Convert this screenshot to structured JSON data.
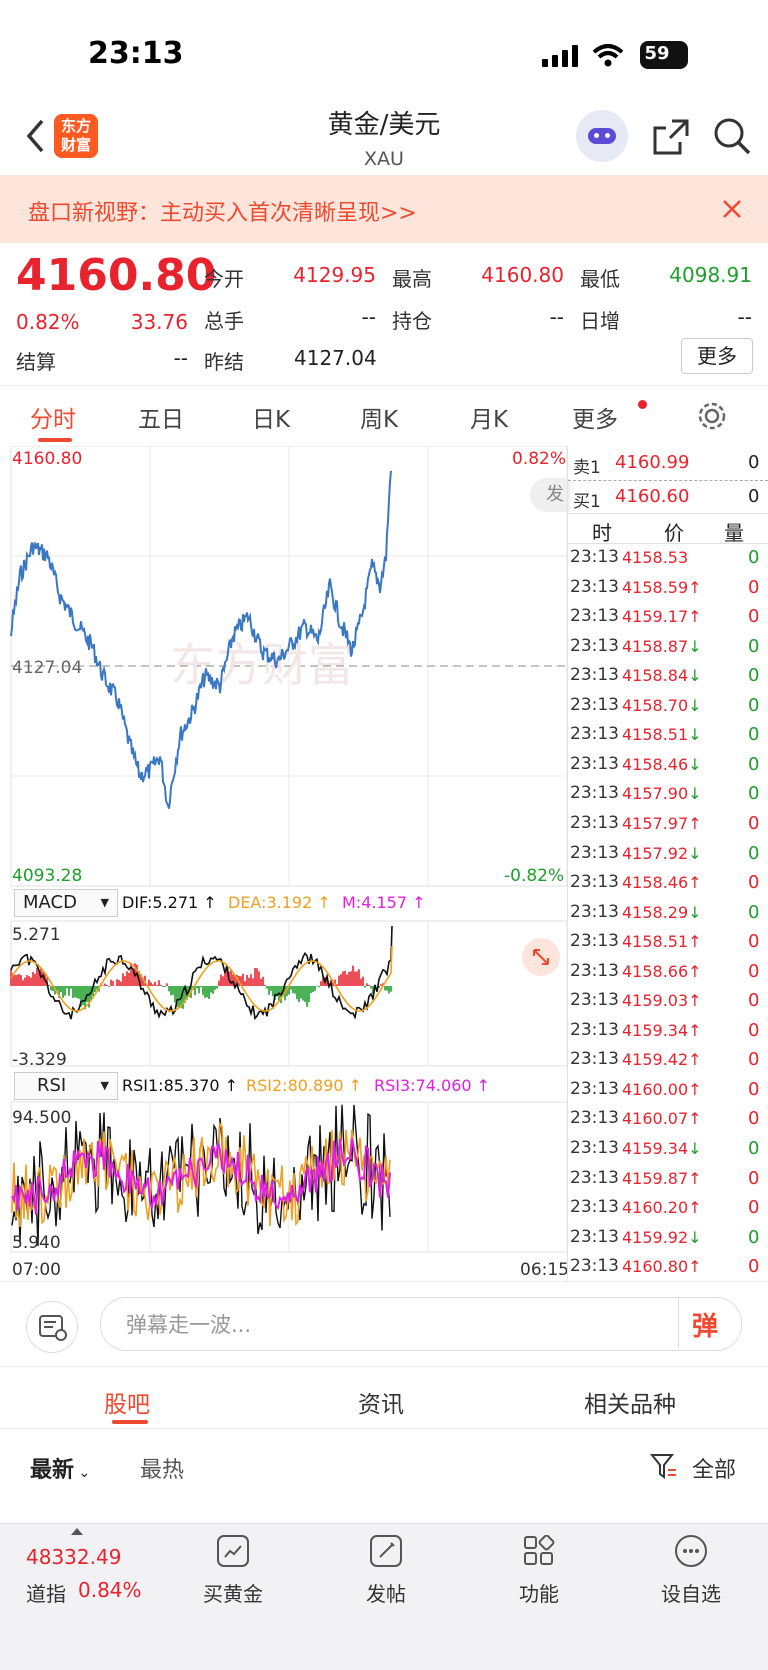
{
  "status_bar": {
    "time": "23:13",
    "battery": "59"
  },
  "nav": {
    "title": "黄金/美元",
    "subtitle": "XAU",
    "logo_text": "东方财富"
  },
  "banner": {
    "text": "盘口新视野：主动买入首次清晰呈现>>"
  },
  "quote": {
    "price": "4160.80",
    "change_pct": "0.82%",
    "change": "33.76",
    "open_label": "今开",
    "open": "4129.95",
    "high_label": "最高",
    "high": "4160.80",
    "low_label": "最低",
    "low": "4098.91",
    "volume_label": "总手",
    "volume": "--",
    "position_label": "持仓",
    "position": "--",
    "daily_inc_label": "日增",
    "daily_inc": "--",
    "settle_label": "结算",
    "settle": "--",
    "prev_settle_label": "昨结",
    "prev_settle": "4127.04",
    "more_label": "更多"
  },
  "tabs": [
    "分时",
    "五日",
    "日K",
    "周K",
    "月K",
    "更多"
  ],
  "chart": {
    "y_top": "4160.80",
    "y_mid": "4127.04",
    "y_bottom": "4093.28",
    "pct_top": "0.82%",
    "pct_bottom": "-0.82%",
    "send_label": "发",
    "macd_selector": "MACD",
    "dif": "DIF:5.271 ↑",
    "dea": "DEA:3.192 ↑",
    "m": "M:4.157 ↑",
    "macd_top": "5.271",
    "macd_bottom": "-3.329",
    "rsi_selector": "RSI",
    "rsi1": "RSI1:85.370 ↑",
    "rsi2": "RSI2:80.890 ↑",
    "rsi3": "RSI3:74.060 ↑",
    "rsi_top": "94.500",
    "rsi_bottom": "5.940",
    "time_start": "07:00",
    "time_end": "06:15",
    "watermark": "东方财富"
  },
  "orderbook": {
    "sell_label": "卖1",
    "sell_price": "4160.99",
    "sell_vol": "0",
    "buy_label": "买1",
    "buy_price": "4160.60",
    "buy_vol": "0",
    "head_time": "时",
    "head_price": "价",
    "head_vol": "量"
  },
  "ticks": [
    {
      "t": "23:13",
      "p": "4158.53",
      "a": "",
      "d": "0",
      "c": "red",
      "vc": "green"
    },
    {
      "t": "23:13",
      "p": "4158.59",
      "a": "↑",
      "d": "0",
      "c": "red",
      "vc": "red"
    },
    {
      "t": "23:13",
      "p": "4159.17",
      "a": "↑",
      "d": "0",
      "c": "red",
      "vc": "red"
    },
    {
      "t": "23:13",
      "p": "4158.87",
      "a": "↓",
      "d": "0",
      "c": "red",
      "vc": "green"
    },
    {
      "t": "23:13",
      "p": "4158.84",
      "a": "↓",
      "d": "0",
      "c": "red",
      "vc": "green"
    },
    {
      "t": "23:13",
      "p": "4158.70",
      "a": "↓",
      "d": "0",
      "c": "red",
      "vc": "green"
    },
    {
      "t": "23:13",
      "p": "4158.51",
      "a": "↓",
      "d": "0",
      "c": "red",
      "vc": "green"
    },
    {
      "t": "23:13",
      "p": "4158.46",
      "a": "↓",
      "d": "0",
      "c": "red",
      "vc": "green"
    },
    {
      "t": "23:13",
      "p": "4157.90",
      "a": "↓",
      "d": "0",
      "c": "red",
      "vc": "green"
    },
    {
      "t": "23:13",
      "p": "4157.97",
      "a": "↑",
      "d": "0",
      "c": "red",
      "vc": "red"
    },
    {
      "t": "23:13",
      "p": "4157.92",
      "a": "↓",
      "d": "0",
      "c": "red",
      "vc": "green"
    },
    {
      "t": "23:13",
      "p": "4158.46",
      "a": "↑",
      "d": "0",
      "c": "red",
      "vc": "red"
    },
    {
      "t": "23:13",
      "p": "4158.29",
      "a": "↓",
      "d": "0",
      "c": "red",
      "vc": "green"
    },
    {
      "t": "23:13",
      "p": "4158.51",
      "a": "↑",
      "d": "0",
      "c": "red",
      "vc": "red"
    },
    {
      "t": "23:13",
      "p": "4158.66",
      "a": "↑",
      "d": "0",
      "c": "red",
      "vc": "red"
    },
    {
      "t": "23:13",
      "p": "4159.03",
      "a": "↑",
      "d": "0",
      "c": "red",
      "vc": "red"
    },
    {
      "t": "23:13",
      "p": "4159.34",
      "a": "↑",
      "d": "0",
      "c": "red",
      "vc": "red"
    },
    {
      "t": "23:13",
      "p": "4159.42",
      "a": "↑",
      "d": "0",
      "c": "red",
      "vc": "red"
    },
    {
      "t": "23:13",
      "p": "4160.00",
      "a": "↑",
      "d": "0",
      "c": "red",
      "vc": "red"
    },
    {
      "t": "23:13",
      "p": "4160.07",
      "a": "↑",
      "d": "0",
      "c": "red",
      "vc": "red"
    },
    {
      "t": "23:13",
      "p": "4159.34",
      "a": "↓",
      "d": "0",
      "c": "red",
      "vc": "green"
    },
    {
      "t": "23:13",
      "p": "4159.87",
      "a": "↑",
      "d": "0",
      "c": "red",
      "vc": "red"
    },
    {
      "t": "23:13",
      "p": "4160.20",
      "a": "↑",
      "d": "0",
      "c": "red",
      "vc": "red"
    },
    {
      "t": "23:13",
      "p": "4159.92",
      "a": "↓",
      "d": "0",
      "c": "red",
      "vc": "green"
    },
    {
      "t": "23:13",
      "p": "4160.80",
      "a": "↑",
      "d": "0",
      "c": "red",
      "vc": "red"
    }
  ],
  "comment": {
    "placeholder": "弹幕走一波...",
    "danmu_label": "弹"
  },
  "sections": {
    "tabs": [
      "股吧",
      "资讯",
      "相关品种"
    ],
    "sort_latest": "最新",
    "sort_hot": "最热",
    "filter_all": "全部"
  },
  "bottom_bar": {
    "index_value": "48332.49",
    "index_name": "道指",
    "index_pct": "0.84%",
    "items": [
      "买黄金",
      "发帖",
      "功能",
      "设自选"
    ]
  },
  "colors": {
    "up": "#e8232e",
    "down": "#1e9e2a",
    "accent": "#ef4a2f",
    "line": "#3b78c4",
    "dea": "#f0a020",
    "m": "#e020e0"
  }
}
